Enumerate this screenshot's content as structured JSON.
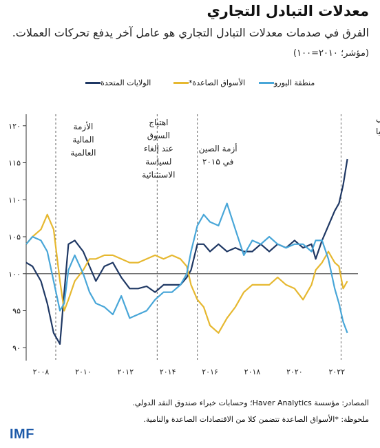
{
  "header": {
    "title": "معدلات التبادل التجاري",
    "subtitle": "الفرق في صدمات معدلات التبادل التجاري هو عامل آخر يدفع تحركات العملات.",
    "unit": "(مؤشر؛ ۲۰۱۰=۱۰۰)"
  },
  "legend": [
    {
      "label": "الولايات المتحدة",
      "color": "#1f3864"
    },
    {
      "label": "الأسواق الصاعدة*",
      "color": "#e6b830"
    },
    {
      "label": "منطقة اليورو",
      "color": "#48a6d8"
    }
  ],
  "annotations": {
    "gfc": [
      "الأزمة",
      "المالية",
      "العالمية"
    ],
    "taper": [
      "اهتياج",
      "السوق",
      "عند إلغاء",
      "لسياسة",
      "الاستثنائية"
    ],
    "china": [
      "أزمة الصين",
      "في ۲۰۱۵"
    ],
    "ukraine": [
      "لغزو الروسي",
      "لأوكرانيا"
    ]
  },
  "notes": {
    "sources": "المصادر: مؤسسة Haver Analytics؛ وحسابات خبراء صندوق النقد الدولي.",
    "note": "ملحوظة: *الأسواق الصاعدة تتضمن كلا من الاقتصادات الصاعدة والنامية."
  },
  "logo": "IMF",
  "chart_data": {
    "type": "line",
    "y_tick_labels": [
      "۹۰",
      "۹۵",
      "۱۰۰",
      "۱۰۵",
      "۱۱۰",
      "۱۱۵",
      "۱۲۰"
    ],
    "y_ticks": [
      90,
      95,
      100,
      105,
      110,
      115,
      120
    ],
    "ylim": [
      89,
      121
    ],
    "xlim": [
      2007.3,
      2023.0
    ],
    "x_ticks": [
      2008,
      2010,
      2012,
      2014,
      2016,
      2018,
      2020,
      2022
    ],
    "x_tick_labels": [
      "۲۰۰۸",
      "۲۰۱۰",
      "۲۰۱۲",
      "۲۰۱۴",
      "۲۰۱۶",
      "۲۰۱۸",
      "۲۰۲۰",
      "۲۰۲۲"
    ],
    "reference_line": 100,
    "event_lines": [
      2008.7,
      2013.5,
      2015.4,
      2022.2
    ],
    "series": [
      {
        "name": "الولايات المتحدة",
        "color": "#1f3864",
        "x": [
          2007.3,
          2007.6,
          2008.0,
          2008.3,
          2008.6,
          2008.9,
          2009.1,
          2009.3,
          2009.6,
          2010.0,
          2010.3,
          2010.6,
          2011.0,
          2011.4,
          2011.8,
          2012.2,
          2012.6,
          2013.0,
          2013.4,
          2013.8,
          2014.2,
          2014.6,
          2014.9,
          2015.1,
          2015.4,
          2015.7,
          2016.0,
          2016.4,
          2016.8,
          2017.2,
          2017.6,
          2018.0,
          2018.4,
          2018.8,
          2019.2,
          2019.6,
          2020.0,
          2020.4,
          2020.8,
          2021.0,
          2021.3,
          2021.6,
          2021.9,
          2022.1,
          2022.3,
          2022.5
        ],
        "values": [
          101.5,
          101.0,
          99.0,
          96.0,
          92.0,
          90.5,
          97.5,
          104.0,
          104.5,
          103.0,
          101.0,
          99.0,
          101.0,
          101.5,
          99.5,
          98.0,
          98.0,
          98.3,
          97.5,
          98.5,
          98.5,
          98.5,
          99.5,
          100.5,
          104.0,
          104.0,
          103.0,
          104.0,
          103.0,
          103.5,
          103.0,
          103.0,
          104.0,
          103.0,
          104.0,
          103.5,
          104.5,
          103.5,
          104.0,
          102.0,
          104.5,
          106.5,
          108.5,
          109.5,
          112.0,
          115.5
        ]
      },
      {
        "name": "الأسواق الصاعدة*",
        "color": "#e6b830",
        "x": [
          2007.3,
          2007.6,
          2008.0,
          2008.3,
          2008.6,
          2008.9,
          2009.1,
          2009.3,
          2009.6,
          2010.0,
          2010.3,
          2010.6,
          2011.0,
          2011.4,
          2011.8,
          2012.2,
          2012.6,
          2013.0,
          2013.4,
          2013.8,
          2014.2,
          2014.6,
          2014.9,
          2015.1,
          2015.4,
          2015.7,
          2016.0,
          2016.4,
          2016.8,
          2017.2,
          2017.6,
          2018.0,
          2018.4,
          2018.8,
          2019.2,
          2019.6,
          2020.0,
          2020.4,
          2020.8,
          2021.0,
          2021.3,
          2021.6,
          2021.9,
          2022.1,
          2022.3,
          2022.5
        ],
        "values": [
          104.0,
          105.0,
          106.0,
          108.0,
          106.0,
          99.0,
          95.0,
          96.5,
          99.0,
          100.5,
          102.0,
          102.0,
          102.5,
          102.5,
          102.0,
          101.5,
          101.5,
          102.0,
          102.5,
          102.0,
          102.5,
          102.0,
          101.0,
          98.5,
          96.5,
          95.5,
          93.0,
          92.0,
          94.0,
          95.5,
          97.5,
          98.5,
          98.5,
          98.5,
          99.5,
          98.5,
          98.0,
          96.5,
          98.5,
          100.5,
          101.5,
          103.0,
          101.5,
          101.0,
          98.0,
          99.0
        ]
      },
      {
        "name": "منطقة اليورو",
        "color": "#48a6d8",
        "x": [
          2007.3,
          2007.6,
          2008.0,
          2008.3,
          2008.6,
          2008.9,
          2009.1,
          2009.3,
          2009.6,
          2010.0,
          2010.3,
          2010.6,
          2011.0,
          2011.4,
          2011.8,
          2012.2,
          2012.6,
          2013.0,
          2013.4,
          2013.8,
          2014.2,
          2014.6,
          2014.9,
          2015.1,
          2015.4,
          2015.7,
          2016.0,
          2016.4,
          2016.8,
          2017.2,
          2017.6,
          2018.0,
          2018.4,
          2018.8,
          2019.2,
          2019.6,
          2020.0,
          2020.4,
          2020.8,
          2021.0,
          2021.3,
          2021.6,
          2021.9,
          2022.1,
          2022.3,
          2022.5
        ],
        "values": [
          104.0,
          105.0,
          104.5,
          103.0,
          99.0,
          95.0,
          96.0,
          100.5,
          102.5,
          100.0,
          97.5,
          96.0,
          95.5,
          94.5,
          97.0,
          94.0,
          94.5,
          95.0,
          96.5,
          97.5,
          97.5,
          98.5,
          100.0,
          103.0,
          106.5,
          108.0,
          107.0,
          106.5,
          109.5,
          106.0,
          102.5,
          104.5,
          104.0,
          105.0,
          104.0,
          103.5,
          104.0,
          104.0,
          103.0,
          104.5,
          104.5,
          102.0,
          98.0,
          96.0,
          93.5,
          92.0
        ]
      }
    ]
  }
}
